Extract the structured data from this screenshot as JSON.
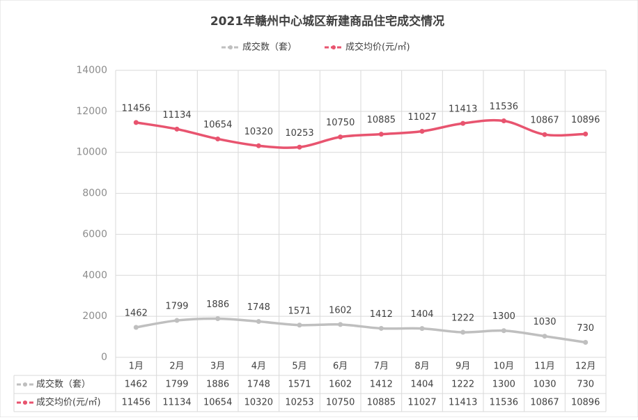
{
  "chart_data": {
    "type": "line",
    "title": "2021年赣州中心城区新建商品住宅成交情况",
    "categories": [
      "1月",
      "2月",
      "3月",
      "4月",
      "5月",
      "6月",
      "7月",
      "8月",
      "9月",
      "10月",
      "11月",
      "12月"
    ],
    "series": [
      {
        "name": "成交数（套）",
        "color": "#bfbfbf",
        "values": [
          1462,
          1799,
          1886,
          1748,
          1571,
          1602,
          1412,
          1404,
          1222,
          1300,
          1030,
          730
        ]
      },
      {
        "name": "成交均价(元/㎡)",
        "color": "#e8546f",
        "values": [
          11456,
          11134,
          10654,
          10320,
          10253,
          10750,
          10885,
          11027,
          11413,
          11536,
          10867,
          10896
        ]
      }
    ],
    "ylim": [
      0,
      14000
    ],
    "yticks": [
      0,
      2000,
      4000,
      6000,
      8000,
      10000,
      12000,
      14000
    ],
    "grid": true,
    "legend": "top",
    "data_table": true
  }
}
